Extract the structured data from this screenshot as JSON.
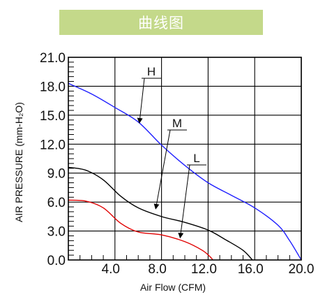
{
  "banner": {
    "title": "曲线图"
  },
  "chart_data": {
    "type": "line",
    "title": "曲线图",
    "xlabel": "Air Flow (CFM)",
    "ylabel": "AIR PRESSURE (mm-H₂O)",
    "xlim": [
      0,
      20
    ],
    "ylim": [
      0,
      21
    ],
    "x_ticks": [
      "4.0",
      "8.0",
      "12.0",
      "16.0",
      "20.0"
    ],
    "y_ticks": [
      "0.0",
      "3.0",
      "6.0",
      "9.0",
      "12.0",
      "15.0",
      "18.0",
      "21.0"
    ],
    "grid": true,
    "series": [
      {
        "name": "H",
        "color": "#1f1fff",
        "points": [
          [
            0,
            18.3
          ],
          [
            2,
            17.2
          ],
          [
            4,
            15.8
          ],
          [
            6,
            14.3
          ],
          [
            8,
            11.9
          ],
          [
            10,
            9.8
          ],
          [
            12,
            8.0
          ],
          [
            14,
            6.7
          ],
          [
            16,
            5.4
          ],
          [
            18,
            3.6
          ],
          [
            19,
            2.0
          ],
          [
            20,
            0.0
          ]
        ]
      },
      {
        "name": "M",
        "color": "#000000",
        "points": [
          [
            0,
            9.6
          ],
          [
            1.5,
            9.3
          ],
          [
            3,
            8.3
          ],
          [
            4.5,
            6.6
          ],
          [
            6,
            5.4
          ],
          [
            8,
            4.5
          ],
          [
            10,
            3.9
          ],
          [
            12,
            3.1
          ],
          [
            13.5,
            2.1
          ],
          [
            15,
            1.0
          ],
          [
            15.8,
            0.0
          ]
        ]
      },
      {
        "name": "L",
        "color": "#e00000",
        "points": [
          [
            0,
            6.2
          ],
          [
            1.5,
            6.1
          ],
          [
            3,
            5.4
          ],
          [
            4.5,
            3.8
          ],
          [
            6,
            2.9
          ],
          [
            8,
            2.6
          ],
          [
            10,
            1.9
          ],
          [
            11.5,
            1.0
          ],
          [
            12.2,
            0.3
          ],
          [
            12.4,
            0.0
          ]
        ]
      }
    ],
    "annotations": [
      {
        "label": "H",
        "points_to": [
          6.1,
          14.2
        ]
      },
      {
        "label": "M",
        "points_to": [
          7.5,
          5.3
        ]
      },
      {
        "label": "L",
        "points_to": [
          9.6,
          2.3
        ]
      }
    ]
  }
}
